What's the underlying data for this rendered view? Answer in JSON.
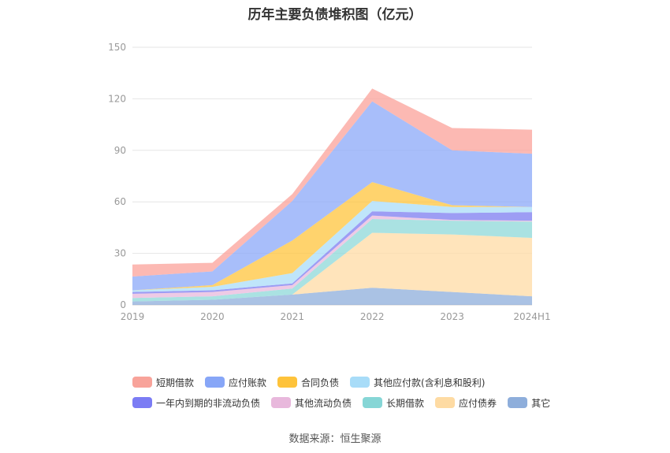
{
  "chart_data": {
    "type": "area",
    "stacked": true,
    "title": "历年主要负债堆积图（亿元）",
    "categories": [
      "2019",
      "2020",
      "2021",
      "2022",
      "2023",
      "2024H1"
    ],
    "ylim": [
      0,
      150
    ],
    "yticks": [
      0,
      30,
      60,
      90,
      120,
      150
    ],
    "grid": true,
    "legend_position": "bottom",
    "series": [
      {
        "name": "其它",
        "color": "#8eaedb",
        "values": [
          2,
          3,
          6,
          10,
          7.5,
          5
        ]
      },
      {
        "name": "应付债券",
        "color": "#ffdba4",
        "values": [
          0,
          0,
          0,
          32,
          33.5,
          34
        ]
      },
      {
        "name": "长期借款",
        "color": "#8ed8d8",
        "values": [
          2,
          2,
          3.5,
          8,
          8,
          9.5
        ]
      },
      {
        "name": "其他流动负债",
        "color": "#e8b8dc",
        "values": [
          2.5,
          2.5,
          2,
          2,
          0.5,
          0.5
        ]
      },
      {
        "name": "一年内到期的非流动负债",
        "color": "#7c7cf0",
        "values": [
          1,
          1,
          1,
          2.5,
          4,
          5
        ]
      },
      {
        "name": "其他应付款(含利息和股利)",
        "color": "#aadcf8",
        "values": [
          1,
          2,
          6,
          6,
          3.5,
          3
        ]
      },
      {
        "name": "合同负债",
        "color": "#ffc43c",
        "values": [
          0,
          1,
          19,
          11,
          1,
          0
        ]
      },
      {
        "name": "应付账款",
        "color": "#8ba8f8",
        "values": [
          8,
          8,
          23,
          47,
          32,
          31
        ]
      },
      {
        "name": "短期借款",
        "color": "#fba29a",
        "values": [
          7,
          5,
          4,
          7.5,
          13,
          14
        ]
      }
    ]
  },
  "legend": {
    "rows": [
      [
        {
          "label": "短期借款",
          "color": "#f8a39a"
        },
        {
          "label": "应付账款",
          "color": "#87a6f7"
        },
        {
          "label": "合同负债",
          "color": "#fec33b"
        },
        {
          "label": "其他应付款(含利息和股利)",
          "color": "#a8dcf8"
        }
      ],
      [
        {
          "label": "一年内到期的非流动负债",
          "color": "#7b7cf4"
        },
        {
          "label": "其他流动负债",
          "color": "#e8b8dc"
        },
        {
          "label": "长期借款",
          "color": "#86d6d6"
        },
        {
          "label": "应付债券",
          "color": "#fedba3"
        },
        {
          "label": "其它",
          "color": "#8eaedb"
        }
      ]
    ]
  },
  "source": "数据来源：恒生聚源"
}
